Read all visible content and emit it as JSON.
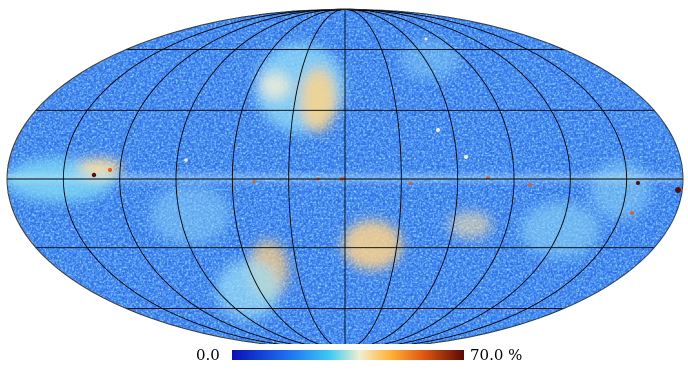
{
  "map": {
    "projection": "mollweide",
    "graticule": {
      "parallels_deg": [
        -60,
        -30,
        0,
        30,
        60
      ],
      "meridians_deg": [
        -180,
        -150,
        -120,
        -90,
        -60,
        -30,
        0,
        30,
        60,
        90,
        120,
        150,
        180
      ]
    },
    "background_color": "#2f6ee8",
    "grid_color": "#000000"
  },
  "colorbar": {
    "min_label": "0.0",
    "max_label": "70.0 %",
    "stops": [
      {
        "offset": 0.0,
        "color": "#0a0fb8"
      },
      {
        "offset": 0.25,
        "color": "#1f74f0"
      },
      {
        "offset": 0.42,
        "color": "#3ec9f2"
      },
      {
        "offset": 0.55,
        "color": "#f3eecf"
      },
      {
        "offset": 0.68,
        "color": "#ffb43a"
      },
      {
        "offset": 0.82,
        "color": "#e25a13"
      },
      {
        "offset": 1.0,
        "color": "#5b0a06"
      }
    ]
  }
}
